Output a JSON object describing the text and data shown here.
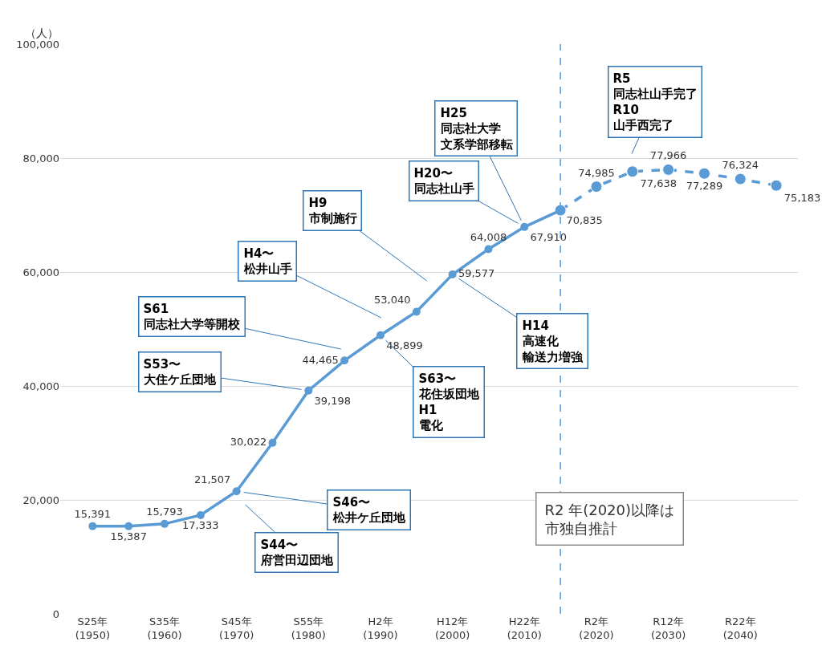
{
  "chart_data": {
    "type": "line",
    "ylabel": "（人）",
    "categories": [
      "S25年\n(1950)",
      null,
      "S35年\n(1960)",
      null,
      "S45年\n(1970)",
      null,
      "S55年\n(1980)",
      null,
      "H2年\n(1990)",
      null,
      "H12年\n(2000)",
      null,
      "H22年\n(2010)",
      null,
      "R2年\n(2020)",
      null,
      "R12年\n(2030)",
      null,
      "R22年\n(2040)",
      null
    ],
    "series": [
      {
        "color": "#5b9bd5",
        "line_style": "solid",
        "marker": "circle",
        "values": [
          15391,
          15387,
          15793,
          17333,
          21507,
          30022,
          39198,
          44465,
          48899,
          53040,
          59577,
          64008,
          67910,
          70835,
          null,
          null,
          null,
          null,
          null,
          null
        ],
        "value_labels": [
          "15,391",
          "15,387",
          "15,793",
          "17,333",
          "21,507",
          "30,022",
          "39,198",
          "44,465",
          "48,899",
          "53,040",
          "59,577",
          "64,008",
          "67,910",
          "70,835",
          null,
          null,
          null,
          null,
          null,
          null
        ]
      },
      {
        "color": "#5b9bd5",
        "line_style": "dashed",
        "marker": "circle",
        "values": [
          null,
          null,
          null,
          null,
          null,
          null,
          null,
          null,
          null,
          null,
          null,
          null,
          null,
          70835,
          74985,
          77638,
          77966,
          77289,
          76324,
          75183
        ],
        "value_labels": [
          null,
          null,
          null,
          null,
          null,
          null,
          null,
          null,
          null,
          null,
          null,
          null,
          null,
          null,
          "74,985",
          "77,638",
          "77,966",
          "77,289",
          "76,324",
          "75,183"
        ]
      }
    ],
    "ylim": [
      0,
      100000
    ],
    "yticks": [
      0,
      {
        "value": 20000,
        "label": "20,000"
      },
      {
        "value": 40000,
        "label": "40,000"
      },
      {
        "value": 60000,
        "label": "60,000"
      },
      {
        "value": 80000,
        "label": "80,000"
      },
      {
        "value": 100000,
        "label": "100,000"
      }
    ],
    "grid": "y",
    "ref_lines": [
      {
        "axis": "x",
        "color": "#5b9bd5",
        "line_style": "dashed"
      }
    ],
    "annotations": [
      "S44〜府営田辺団地",
      {
        "text": "S46〜松井ケ丘団地",
        "x": "S45年\n(1970)",
        "y": 21507
      },
      {
        "text": "S53〜大住ケ丘団地",
        "x": "S55年\n(1980)",
        "y": 39198
      },
      "S61同志社大学等開校",
      {
        "text": "S63〜花住坂団地H1電化",
        "x": "H2年\n(1990)",
        "y": 48899
      },
      "H4〜松井山手",
      "H9市制施行",
      {
        "text": "H14高速化輸送力増強",
        "x": "H12年\n(2000)",
        "y": 59577
      },
      {
        "text": "H20〜同志社山手",
        "x": "H22年\n(2010)",
        "y": 67910
      },
      {
        "text": "H25同志社大学文系学部移転",
        "x": "H22年\n(2010)",
        "y": 67910
      },
      "R5同志社山手完了R10山手西完了",
      "R2 年(2020)以降は市独自推計"
    ]
  }
}
